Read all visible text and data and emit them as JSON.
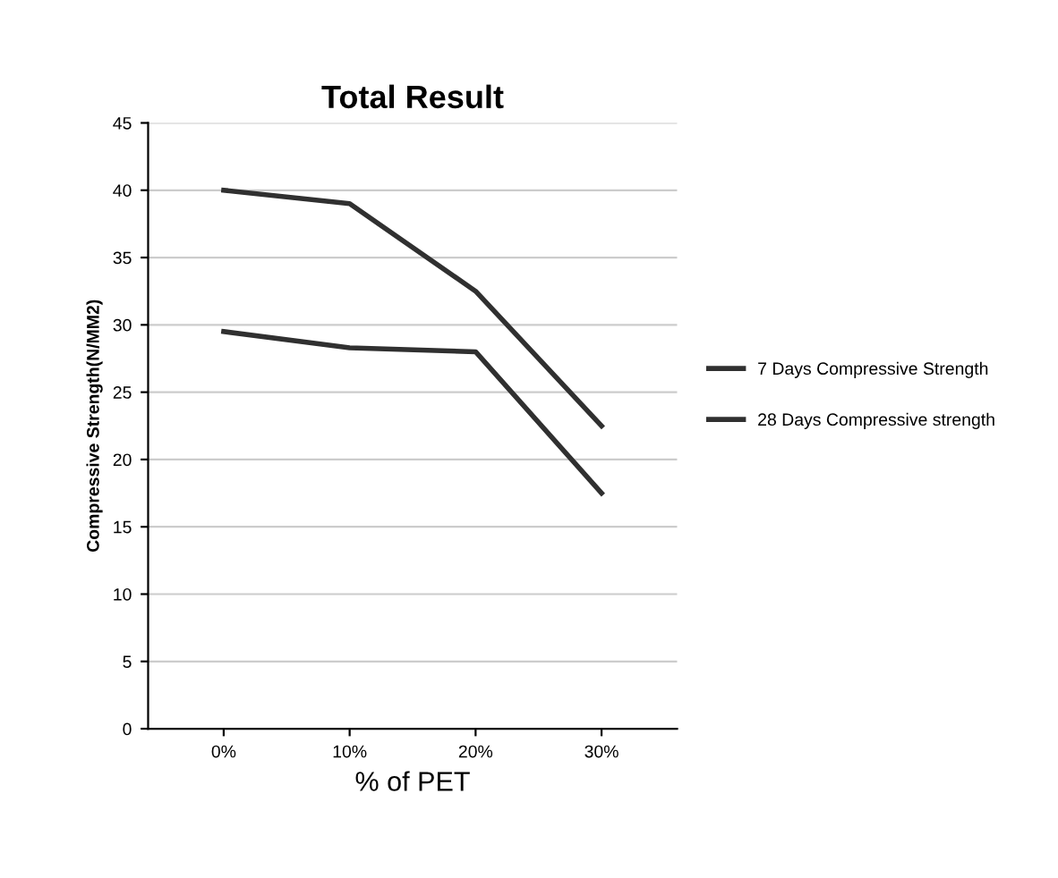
{
  "chart_data": {
    "type": "line",
    "title": "Total Result",
    "xlabel": "% of PET",
    "ylabel": "Compressive Strength(N/MM2)",
    "categories": [
      "0%",
      "10%",
      "20%",
      "30%"
    ],
    "series": [
      {
        "name": "7 Days Compressive Strength",
        "color": "#303030",
        "values": [
          29.5,
          28.3,
          28,
          17.5
        ]
      },
      {
        "name": "28 Days Compressive strength",
        "color": "#303030",
        "values": [
          40,
          39,
          32.5,
          22.5
        ]
      }
    ],
    "ylim": [
      0,
      45
    ],
    "yticks": [
      0,
      5,
      10,
      15,
      20,
      25,
      30,
      35,
      40,
      45
    ],
    "grid": "y",
    "legend": "right",
    "marker": "none"
  }
}
